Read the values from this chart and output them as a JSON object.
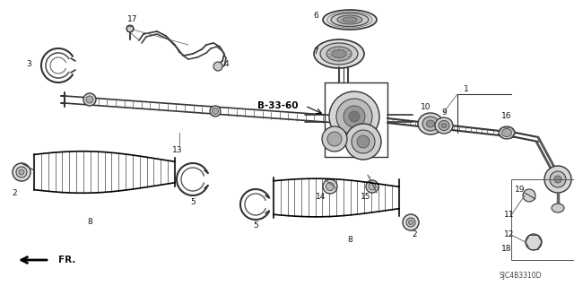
{
  "background_color": "#ffffff",
  "diagram_code": "SJC4B3310D",
  "part_ref": "B-33-60",
  "fig_width": 6.4,
  "fig_height": 3.19,
  "dpi": 100
}
